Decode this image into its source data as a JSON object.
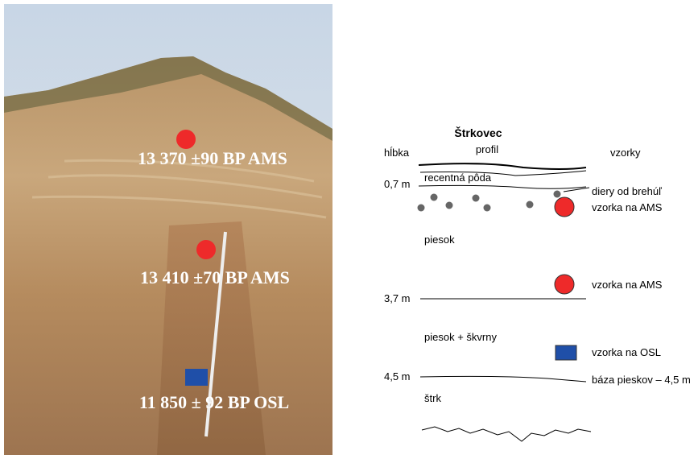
{
  "photo": {
    "labels": [
      "13 370 ±90 BP AMS",
      "13 410  ±70 BP AMS",
      "11 850 ± 92 BP OSL"
    ]
  },
  "profile": {
    "title": "Štrkovec",
    "subtitle": "profil",
    "depth_header": "hĺbka",
    "samples_header": "vzorky",
    "depths": [
      "0,7 m",
      "3,7 m",
      "4,5 m"
    ],
    "layers": [
      "recentná pôda",
      "piesok",
      "piesok + škvrny",
      "štrk"
    ],
    "annotations": [
      "diery od brehúľ",
      "vzorka na AMS",
      "vzorka na AMS",
      "vzorka na OSL",
      "báza pieskov – 4,5 m"
    ]
  }
}
